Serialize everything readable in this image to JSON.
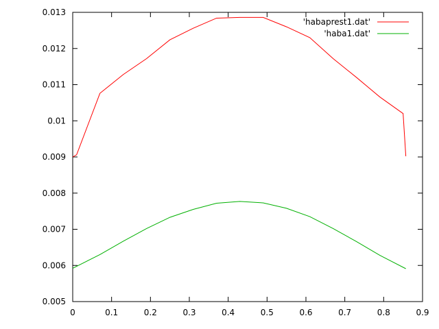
{
  "chart_data": {
    "type": "line",
    "title": "",
    "xlabel": "",
    "ylabel": "",
    "xlim": [
      0,
      0.9
    ],
    "ylim": [
      0.005,
      0.013
    ],
    "x_ticks": [
      "0",
      "0.1",
      "0.2",
      "0.3",
      "0.4",
      "0.5",
      "0.6",
      "0.7",
      "0.8",
      "0.9"
    ],
    "y_ticks": [
      "0.005",
      "0.006",
      "0.007",
      "0.008",
      "0.009",
      "0.01",
      "0.011",
      "0.012",
      "0.013"
    ],
    "x_tick_values": [
      0,
      0.1,
      0.2,
      0.3,
      0.4,
      0.5,
      0.6,
      0.7,
      0.8,
      0.9
    ],
    "y_tick_values": [
      0.005,
      0.006,
      0.007,
      0.008,
      0.009,
      0.01,
      0.011,
      0.012,
      0.013
    ],
    "grid": false,
    "legend_position": "top-right",
    "series": [
      {
        "name": "'habaprest1.dat'",
        "color": "#ff0000",
        "points": [
          [
            0.0,
            0.009
          ],
          [
            0.01,
            0.00906
          ],
          [
            0.07,
            0.01076
          ],
          [
            0.13,
            0.01128
          ],
          [
            0.19,
            0.01172
          ],
          [
            0.25,
            0.01224
          ],
          [
            0.31,
            0.01256
          ],
          [
            0.37,
            0.01284
          ],
          [
            0.43,
            0.01286
          ],
          [
            0.49,
            0.01286
          ],
          [
            0.55,
            0.0126
          ],
          [
            0.61,
            0.0123
          ],
          [
            0.67,
            0.01172
          ],
          [
            0.73,
            0.0112
          ],
          [
            0.79,
            0.01066
          ],
          [
            0.85,
            0.0102
          ],
          [
            0.857,
            0.00902
          ]
        ]
      },
      {
        "name": "'haba1.dat'",
        "color": "#00b000",
        "points": [
          [
            0.0,
            0.00592
          ],
          [
            0.07,
            0.0063
          ],
          [
            0.13,
            0.00667
          ],
          [
            0.19,
            0.00702
          ],
          [
            0.25,
            0.00733
          ],
          [
            0.31,
            0.00755
          ],
          [
            0.37,
            0.00772
          ],
          [
            0.43,
            0.00777
          ],
          [
            0.49,
            0.00773
          ],
          [
            0.55,
            0.00758
          ],
          [
            0.61,
            0.00735
          ],
          [
            0.67,
            0.00702
          ],
          [
            0.73,
            0.00666
          ],
          [
            0.79,
            0.00628
          ],
          [
            0.857,
            0.00591
          ]
        ]
      }
    ]
  }
}
